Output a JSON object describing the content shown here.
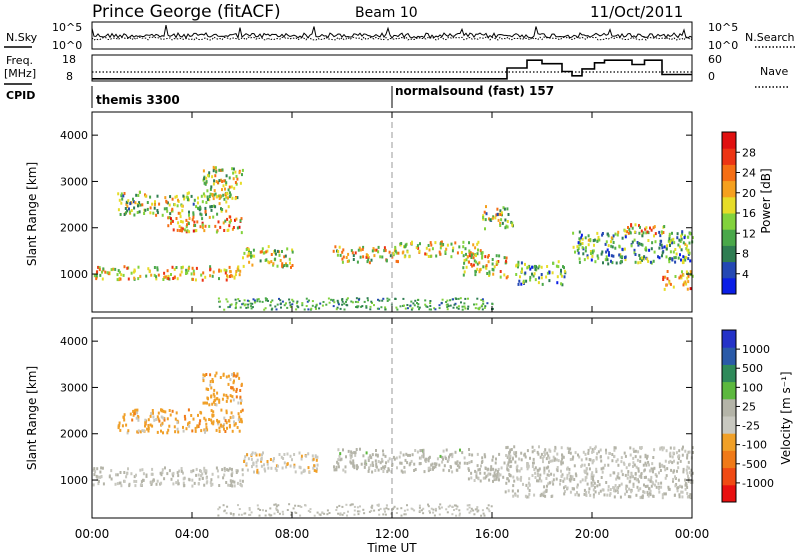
{
  "header": {
    "station": "Prince George (fitACF)",
    "beam": "Beam 10",
    "date": "11/Oct/2011"
  },
  "noise_panel": {
    "left_label": "N.Sky",
    "left_ticks": [
      "10^5",
      "10^0"
    ],
    "right_ticks": [
      "10^5",
      "10^0"
    ],
    "right_label": "N.Search"
  },
  "freq_panel": {
    "left_label_1": "Freq.",
    "left_label_2": "[MHz]",
    "left_ticks": [
      "18",
      "8"
    ],
    "right_ticks": [
      "60",
      "0"
    ],
    "right_label": "Nave",
    "nave_steps": [
      {
        "t0": 0.0,
        "t1": 16.6,
        "nave": 5
      },
      {
        "t0": 16.6,
        "t1": 17.4,
        "nave": 30
      },
      {
        "t0": 17.4,
        "t1": 18.0,
        "nave": 48
      },
      {
        "t0": 18.0,
        "t1": 18.8,
        "nave": 40
      },
      {
        "t0": 18.8,
        "t1": 19.2,
        "nave": 22
      },
      {
        "t0": 19.2,
        "t1": 19.6,
        "nave": 12
      },
      {
        "t0": 19.6,
        "t1": 20.1,
        "nave": 28
      },
      {
        "t0": 20.1,
        "t1": 20.5,
        "nave": 42
      },
      {
        "t0": 20.5,
        "t1": 21.6,
        "nave": 48
      },
      {
        "t0": 21.6,
        "t1": 22.1,
        "nave": 38
      },
      {
        "t0": 22.1,
        "t1": 22.8,
        "nave": 48
      },
      {
        "t0": 22.8,
        "t1": 24.0,
        "nave": 15
      }
    ]
  },
  "cpid": {
    "label": "CPID",
    "modes": [
      {
        "start_hour": 0,
        "name": "themis 3300"
      },
      {
        "start_hour": 12,
        "name": "normalsound (fast) 157"
      }
    ]
  },
  "power_panel": {
    "ylabel": "Slant Range [km]",
    "yticks": [
      "1000",
      "2000",
      "3000",
      "4000"
    ],
    "colorbar": {
      "label": "Power [dB]",
      "ticks": [
        "4",
        "8",
        "12",
        "16",
        "20",
        "24",
        "28"
      ],
      "colors": [
        "#0a1ee6",
        "#2448b4",
        "#2f7d52",
        "#4aa84a",
        "#82d23c",
        "#e6dc28",
        "#f5a01e",
        "#f56e14",
        "#ec3414",
        "#e01010"
      ]
    }
  },
  "velocity_panel": {
    "ylabel": "Slant Range [km]",
    "yticks": [
      "1000",
      "2000",
      "3000",
      "4000"
    ],
    "colorbar": {
      "label": "Velocity [m s⁻¹]",
      "ticks": [
        "1000",
        "500",
        "100",
        "25",
        "-25",
        "-100",
        "-500",
        "-1000"
      ],
      "colors": [
        "#2432c8",
        "#2a5aa8",
        "#2f8a5a",
        "#5cb83e",
        "#b4b4a8",
        "#c8c8c0",
        "#f0a028",
        "#f07a18",
        "#f04a14",
        "#e81010"
      ]
    }
  },
  "xaxis": {
    "label": "Time UT",
    "ticks": [
      "00:00",
      "04:00",
      "08:00",
      "12:00",
      "16:00",
      "20:00",
      "00:00"
    ]
  },
  "chart_data": {
    "type": "heatmap",
    "x_range_hours": [
      0,
      24
    ],
    "y_range_km": [
      180,
      4500
    ],
    "power_regions": [
      {
        "t": 0.0,
        "r": 1050,
        "w": 6.0,
        "h": 300,
        "level": 26
      },
      {
        "t": 1.0,
        "r": 2550,
        "w": 4.5,
        "h": 500,
        "level": 22
      },
      {
        "t": 3.0,
        "r": 2100,
        "w": 3.0,
        "h": 350,
        "level": 28
      },
      {
        "t": 4.4,
        "r": 3000,
        "w": 1.6,
        "h": 700,
        "level": 24
      },
      {
        "t": 6.0,
        "r": 1400,
        "w": 2.0,
        "h": 450,
        "level": 24
      },
      {
        "t": 9.6,
        "r": 1450,
        "w": 2.6,
        "h": 350,
        "level": 25
      },
      {
        "t": 12.2,
        "r": 1550,
        "w": 3.4,
        "h": 350,
        "level": 26
      },
      {
        "t": 14.8,
        "r": 1200,
        "w": 1.8,
        "h": 500,
        "level": 26
      },
      {
        "t": 15.6,
        "r": 2250,
        "w": 1.2,
        "h": 500,
        "level": 22
      },
      {
        "t": 16.9,
        "r": 1050,
        "w": 2.0,
        "h": 500,
        "level": 18
      },
      {
        "t": 19.2,
        "r": 1600,
        "w": 4.8,
        "h": 700,
        "level": 18
      },
      {
        "t": 21.0,
        "r": 2000,
        "w": 2.0,
        "h": 200,
        "level": 26
      },
      {
        "t": 22.8,
        "r": 900,
        "w": 1.2,
        "h": 400,
        "level": 28
      }
    ],
    "velocity_regions": [
      {
        "t": 0.0,
        "r": 1100,
        "w": 6.0,
        "h": 400,
        "vel": 0
      },
      {
        "t": 1.0,
        "r": 2300,
        "w": 5.0,
        "h": 500,
        "vel": -300
      },
      {
        "t": 4.4,
        "r": 3000,
        "w": 1.6,
        "h": 700,
        "vel": -300
      },
      {
        "t": 6.0,
        "r": 1400,
        "w": 3.0,
        "h": 450,
        "vel": -150
      },
      {
        "t": 9.6,
        "r": 1450,
        "w": 5.5,
        "h": 500,
        "vel": 80
      },
      {
        "t": 15.0,
        "r": 1300,
        "w": 2.0,
        "h": 600,
        "vel": 60
      },
      {
        "t": 16.5,
        "r": 1200,
        "w": 7.5,
        "h": 1100,
        "vel": 0
      }
    ]
  }
}
